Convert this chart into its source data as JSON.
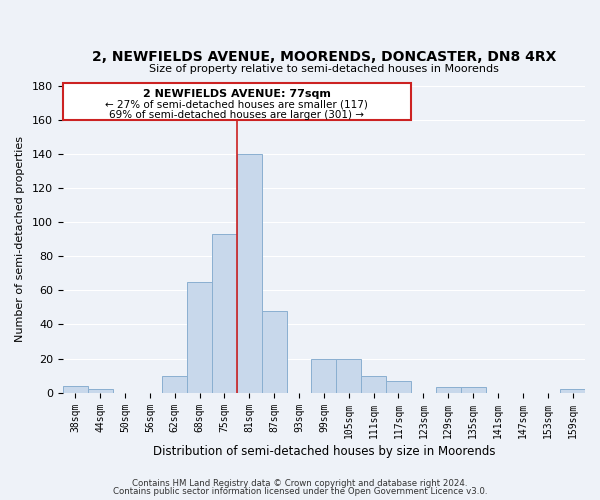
{
  "title": "2, NEWFIELDS AVENUE, MOORENDS, DONCASTER, DN8 4RX",
  "subtitle": "Size of property relative to semi-detached houses in Moorends",
  "xlabel": "Distribution of semi-detached houses by size in Moorends",
  "ylabel": "Number of semi-detached properties",
  "bar_color": "#c8d8eb",
  "bar_edge_color": "#8aafd0",
  "background_color": "#eef2f8",
  "grid_color": "white",
  "annotation_box_edge_color": "#cc2222",
  "vline_color": "#cc2222",
  "bins": [
    "38sqm",
    "44sqm",
    "50sqm",
    "56sqm",
    "62sqm",
    "68sqm",
    "75sqm",
    "81sqm",
    "87sqm",
    "93sqm",
    "99sqm",
    "105sqm",
    "111sqm",
    "117sqm",
    "123sqm",
    "129sqm",
    "135sqm",
    "141sqm",
    "147sqm",
    "153sqm",
    "159sqm"
  ],
  "counts": [
    4,
    2,
    0,
    0,
    10,
    65,
    93,
    140,
    48,
    0,
    20,
    20,
    10,
    7,
    0,
    3,
    3,
    0,
    0,
    0,
    2
  ],
  "property_label": "2 NEWFIELDS AVENUE: 77sqm",
  "smaller_pct": 27,
  "smaller_count": 117,
  "larger_pct": 69,
  "larger_count": 301,
  "vline_x_index": 6,
  "ylim": [
    0,
    180
  ],
  "yticks": [
    0,
    20,
    40,
    60,
    80,
    100,
    120,
    140,
    160,
    180
  ],
  "footer1": "Contains HM Land Registry data © Crown copyright and database right 2024.",
  "footer2": "Contains public sector information licensed under the Open Government Licence v3.0."
}
